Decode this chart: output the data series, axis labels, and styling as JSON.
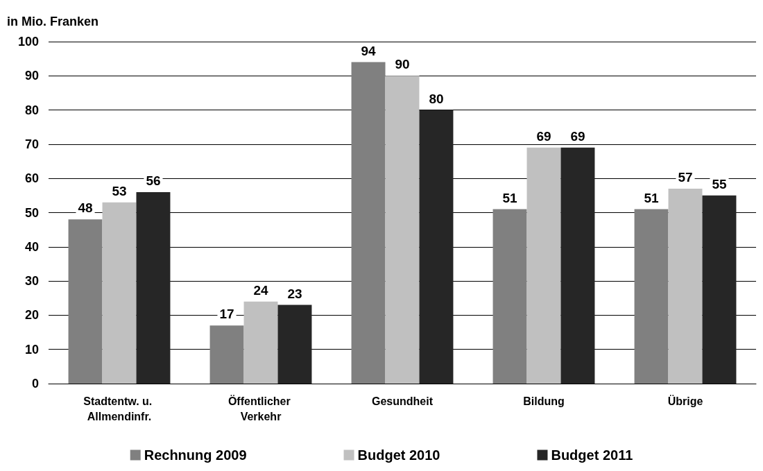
{
  "chart_data": {
    "type": "bar",
    "ylabel": "in Mio. Franken",
    "categories": [
      "Stadtentw. u. Allmendinfr.",
      "Öffentlicher Verkehr",
      "Gesundheit",
      "Bildung",
      "Übrige"
    ],
    "series": [
      {
        "name": "Rechnung 2009",
        "color": "#808080",
        "values": [
          48,
          17,
          94,
          51,
          51
        ]
      },
      {
        "name": "Budget 2010",
        "color": "#c0c0c0",
        "values": [
          53,
          24,
          90,
          69,
          57
        ]
      },
      {
        "name": "Budget 2011",
        "color": "#262626",
        "values": [
          56,
          23,
          80,
          69,
          55
        ]
      }
    ],
    "ylim": [
      0,
      100
    ],
    "yticks": [
      0,
      10,
      20,
      30,
      40,
      50,
      60,
      70,
      80,
      90,
      100
    ],
    "grid": "y",
    "legend": "bottom",
    "data_labels": true
  }
}
